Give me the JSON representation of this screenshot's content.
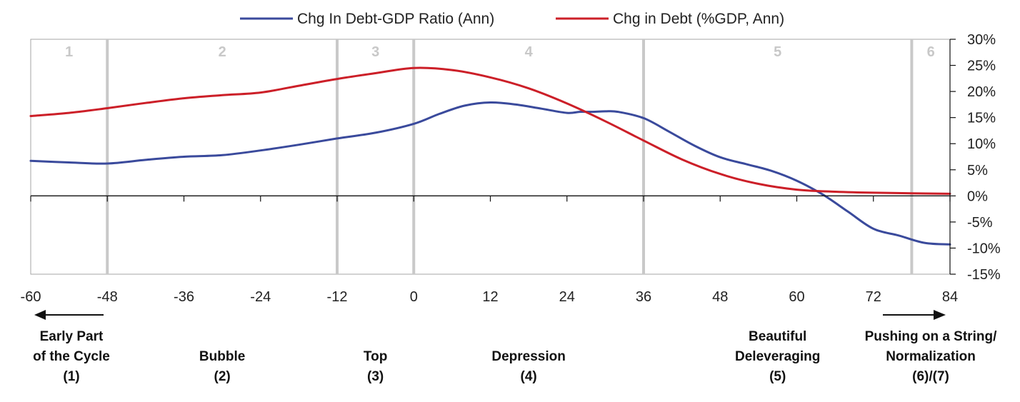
{
  "chart_data": {
    "type": "line",
    "title": "",
    "xlabel": "",
    "ylabel": "",
    "xlim": [
      -60,
      84
    ],
    "ylim": [
      -15,
      30
    ],
    "x_ticks": [
      -60,
      -48,
      -36,
      -24,
      -12,
      0,
      12,
      24,
      36,
      48,
      60,
      72,
      84
    ],
    "y_ticks": [
      -15,
      -10,
      -5,
      0,
      5,
      10,
      15,
      20,
      25,
      30
    ],
    "y_tick_labels": [
      "-15%",
      "-10%",
      "-5%",
      "0%",
      "5%",
      "10%",
      "15%",
      "20%",
      "25%",
      "30%"
    ],
    "legend": {
      "placement": "top"
    },
    "series": [
      {
        "name": "Chg In Debt-GDP Ratio (Ann)",
        "color": "#3a4a9c",
        "x": [
          -60,
          -54,
          -48,
          -42,
          -36,
          -30,
          -24,
          -18,
          -12,
          -6,
          0,
          4,
          8,
          12,
          16,
          20,
          24,
          26,
          28,
          30,
          32,
          36,
          40,
          44,
          48,
          52,
          56,
          60,
          64,
          68,
          72,
          76,
          80,
          84
        ],
        "y": [
          6.7,
          6.4,
          6.2,
          6.9,
          7.5,
          7.8,
          8.7,
          9.8,
          11.0,
          12.1,
          13.8,
          15.7,
          17.3,
          17.9,
          17.5,
          16.7,
          15.9,
          16.1,
          16.1,
          16.2,
          16.1,
          14.9,
          12.3,
          9.6,
          7.4,
          6.1,
          4.8,
          2.9,
          0.3,
          -3.0,
          -6.3,
          -7.6,
          -9.0,
          -9.3
        ]
      },
      {
        "name": "Chg in Debt (%GDP, Ann)",
        "color": "#cc1f28",
        "x": [
          -60,
          -54,
          -48,
          -42,
          -36,
          -30,
          -24,
          -18,
          -12,
          -6,
          0,
          6,
          12,
          18,
          24,
          30,
          36,
          42,
          48,
          54,
          60,
          66,
          72,
          78,
          84
        ],
        "y": [
          15.3,
          15.9,
          16.8,
          17.8,
          18.7,
          19.3,
          19.8,
          21.1,
          22.4,
          23.5,
          24.5,
          24.1,
          22.7,
          20.6,
          17.7,
          14.3,
          10.6,
          7.0,
          4.2,
          2.3,
          1.2,
          0.8,
          0.6,
          0.5,
          0.4
        ]
      }
    ],
    "phase_dividers": [
      -48,
      -12,
      0,
      36,
      78
    ],
    "phases": [
      {
        "number": "1",
        "x_center": -54
      },
      {
        "number": "2",
        "x_center": -30
      },
      {
        "number": "3",
        "x_center": -6
      },
      {
        "number": "4",
        "x_center": 18
      },
      {
        "number": "5",
        "x_center": 57
      },
      {
        "number": "6",
        "x_center": 81
      }
    ],
    "stage_labels": [
      {
        "lines": [
          "Early Part",
          "of the Cycle",
          "(1)"
        ],
        "x_center": -54
      },
      {
        "lines": [
          "Bubble",
          "(2)"
        ],
        "x_center": -30
      },
      {
        "lines": [
          "Top",
          "(3)"
        ],
        "x_center": -6
      },
      {
        "lines": [
          "Depression",
          "(4)"
        ],
        "x_center": 18
      },
      {
        "lines": [
          "Beautiful",
          "Deleveraging",
          "(5)"
        ],
        "x_center": 57
      },
      {
        "lines": [
          "Pushing on a String/",
          "Normalization",
          "(6)/(7)"
        ],
        "x_center": 81
      }
    ]
  }
}
